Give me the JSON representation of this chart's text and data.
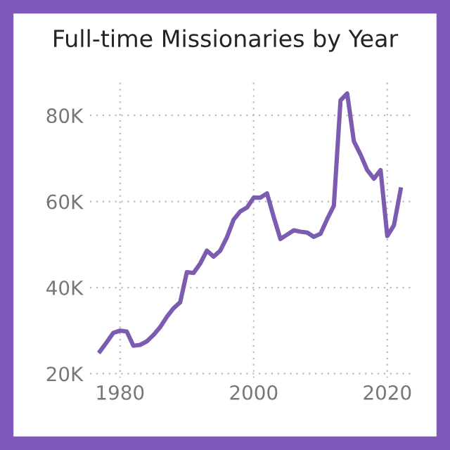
{
  "chart_data": {
    "type": "line",
    "title": "Full-time Missionaries by Year",
    "x": [
      1977,
      1978,
      1979,
      1980,
      1981,
      1982,
      1983,
      1984,
      1985,
      1986,
      1987,
      1988,
      1989,
      1990,
      1991,
      1992,
      1993,
      1994,
      1995,
      1996,
      1997,
      1998,
      1999,
      2000,
      2001,
      2002,
      2003,
      2004,
      2005,
      2006,
      2007,
      2008,
      2009,
      2010,
      2011,
      2012,
      2013,
      2014,
      2015,
      2016,
      2017,
      2018,
      2019,
      2020,
      2021,
      2022
    ],
    "series": [
      {
        "color": "#7b5cb0",
        "values": [
          25200,
          27300,
          29500,
          30000,
          29800,
          26500,
          26700,
          27500,
          29000,
          30800,
          33200,
          35200,
          36600,
          43600,
          43400,
          45600,
          48600,
          47200,
          48600,
          51700,
          55800,
          57700,
          58600,
          60900,
          60900,
          61900,
          56400,
          51300,
          52300,
          53300,
          53000,
          52800,
          51800,
          52500,
          55900,
          59000,
          83500,
          85100,
          74000,
          70900,
          67300,
          65300,
          67300,
          52000,
          54500,
          62800
        ]
      }
    ],
    "xlim": [
      1975.5,
      2024
    ],
    "ylim": [
      19000,
      88000
    ],
    "xticks": [
      1980,
      2000,
      2020
    ],
    "yticks": [
      {
        "value": 20000,
        "label": "20K"
      },
      {
        "value": 40000,
        "label": "40K"
      },
      {
        "value": 60000,
        "label": "60K"
      },
      {
        "value": 80000,
        "label": "80K"
      }
    ],
    "grid": true,
    "marker": "none",
    "line_style": "solid"
  }
}
